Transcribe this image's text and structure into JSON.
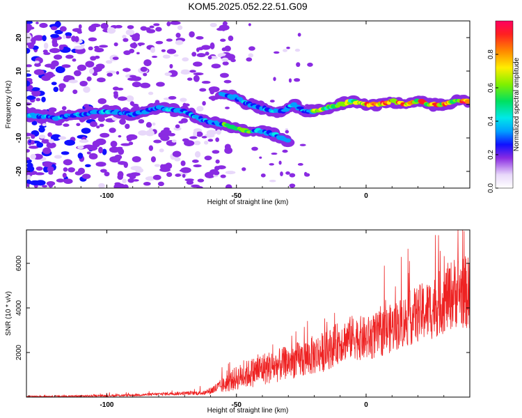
{
  "title": "KOM5.2025.052.22.51.G09",
  "colors": {
    "snr_line": "#ee2222",
    "ridge": "#00d4a6",
    "ridge_hot": "#ff2020",
    "blob": "#8a2be2",
    "blob_dark": "#2a1bb0",
    "light": "#d8c2f4"
  },
  "chart_data": [
    {
      "type": "heatmap",
      "title": "KOM5.2025.052.22.51.G09",
      "xlabel": "Height of straight line (km)",
      "ylabel": "Frequency (Hz)",
      "xlim": [
        -131,
        40
      ],
      "ylim": [
        -25,
        25
      ],
      "x_ticks": [
        -100,
        -50,
        0
      ],
      "y_ticks": [
        20,
        10,
        0,
        -10,
        -20
      ],
      "colorbar": {
        "label": "Normalized spectral amplitude",
        "range": [
          0.0,
          1.0
        ],
        "ticks": [
          0.0,
          0.2,
          0.4,
          0.6,
          0.8
        ],
        "tick_labels": [
          "0.0",
          "0.2",
          "0.4",
          "0.6",
          "0.8"
        ],
        "colormap": "rainbow",
        "stops": [
          {
            "v": 0.0,
            "color": "#ffffff"
          },
          {
            "v": 0.08,
            "color": "#e8d8fa"
          },
          {
            "v": 0.18,
            "color": "#8a2be2"
          },
          {
            "v": 0.26,
            "color": "#1010ff"
          },
          {
            "v": 0.34,
            "color": "#00a0ff"
          },
          {
            "v": 0.42,
            "color": "#00e8e8"
          },
          {
            "v": 0.52,
            "color": "#00e060"
          },
          {
            "v": 0.62,
            "color": "#80f000"
          },
          {
            "v": 0.72,
            "color": "#ffee00"
          },
          {
            "v": 0.82,
            "color": "#ff8800"
          },
          {
            "v": 0.92,
            "color": "#ff2020"
          },
          {
            "v": 1.0,
            "color": "#ff0060"
          }
        ]
      },
      "ridges": [
        {
          "name": "lower",
          "x": [
            -131,
            -120,
            -110,
            -100,
            -90,
            -80,
            -70,
            -62,
            -55,
            -50,
            -45,
            -40,
            -35,
            -30
          ],
          "freq": [
            -3,
            -4,
            -3,
            -2,
            -3,
            -1,
            -2,
            -5,
            -6,
            -7,
            -8,
            -8,
            -9,
            -11
          ]
        },
        {
          "name": "upper",
          "x": [
            -56,
            -50,
            -45,
            -40,
            -36,
            -32,
            -28,
            -24,
            -20,
            -15,
            -10,
            -5,
            0,
            5,
            10,
            15,
            20,
            25,
            30,
            35,
            40
          ],
          "freq": [
            3,
            2,
            0,
            -1,
            -2,
            -2,
            0,
            -2,
            -2,
            -1,
            0,
            1,
            0,
            0,
            1,
            0,
            1,
            0,
            0,
            1,
            1
          ]
        }
      ]
    },
    {
      "type": "line",
      "xlabel": "Height of straight line (km)",
      "ylabel": "SNR (10 * v/v)",
      "xlim": [
        -131,
        40
      ],
      "ylim": [
        0,
        7500
      ],
      "x_ticks": [
        -100,
        -50,
        0
      ],
      "y_ticks": [
        2000,
        4000,
        6000
      ],
      "envelope": {
        "x": [
          -131,
          -110,
          -90,
          -75,
          -62,
          -55,
          -50,
          -45,
          -40,
          -35,
          -30,
          -25,
          -20,
          -15,
          -10,
          -5,
          0,
          5,
          10,
          15,
          20,
          25,
          30,
          35,
          40
        ],
        "mean": [
          20,
          40,
          80,
          150,
          180,
          500,
          800,
          1000,
          1200,
          1300,
          1500,
          1600,
          1800,
          2000,
          2400,
          2600,
          2500,
          2700,
          3000,
          3300,
          3600,
          3800,
          4200,
          4600,
          4500
        ],
        "spread": [
          60,
          80,
          100,
          150,
          200,
          700,
          1100,
          1300,
          1500,
          1500,
          1500,
          1700,
          1800,
          1800,
          1900,
          2000,
          2000,
          2100,
          2200,
          2400,
          2600,
          2800,
          3000,
          3300,
          3300
        ]
      }
    }
  ]
}
